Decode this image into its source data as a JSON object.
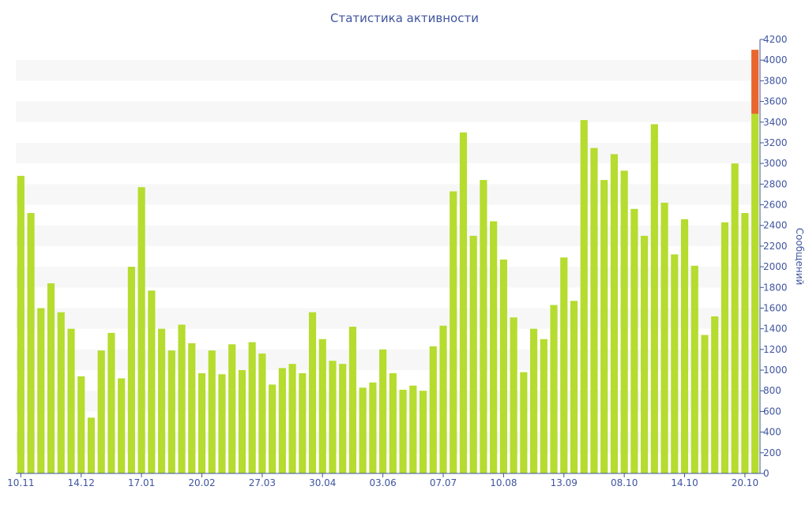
{
  "chart_data": {
    "type": "bar",
    "title": "Статистика активности",
    "xlabel": "",
    "ylabel": "Сообщений",
    "ylim": [
      0,
      4200
    ],
    "y_ticks": [
      0,
      200,
      400,
      600,
      800,
      1000,
      1200,
      1400,
      1600,
      1800,
      2000,
      2200,
      2400,
      2600,
      2800,
      3000,
      3200,
      3400,
      3600,
      3800,
      4000,
      4200
    ],
    "x_tick_labels": [
      {
        "index": 0,
        "label": "10.11"
      },
      {
        "index": 6,
        "label": "14.12"
      },
      {
        "index": 12,
        "label": "17.01"
      },
      {
        "index": 18,
        "label": "20.02"
      },
      {
        "index": 24,
        "label": "27.03"
      },
      {
        "index": 30,
        "label": "30.04"
      },
      {
        "index": 36,
        "label": "03.06"
      },
      {
        "index": 42,
        "label": "07.07"
      },
      {
        "index": 48,
        "label": "10.08"
      },
      {
        "index": 54,
        "label": "13.09"
      },
      {
        "index": 60,
        "label": "08.10"
      },
      {
        "index": 66,
        "label": "14.10"
      },
      {
        "index": 72,
        "label": "20.10"
      }
    ],
    "grid": "horizontal alternating bands",
    "bar_color": "#b5dc2e",
    "highlight_color": "#e8662e",
    "values": [
      2880,
      2520,
      1600,
      1840,
      1560,
      1400,
      940,
      540,
      1190,
      1360,
      920,
      2000,
      2770,
      1770,
      1400,
      1190,
      1440,
      1260,
      970,
      1190,
      960,
      1250,
      1000,
      1270,
      1160,
      860,
      1020,
      1060,
      970,
      1560,
      1300,
      1090,
      1060,
      1420,
      830,
      880,
      1200,
      970,
      810,
      850,
      800,
      1230,
      1430,
      2730,
      3300,
      2300,
      2840,
      2440,
      2070,
      1510,
      980,
      1400,
      1300,
      1630,
      2090,
      1670,
      3420,
      3150,
      2840,
      3090,
      2930,
      2560,
      2300,
      3380,
      2620,
      2120,
      2460,
      2010,
      1340,
      1520,
      2430,
      3000,
      2520,
      4100
    ],
    "highlight": {
      "index": 73,
      "value": 4100,
      "base_value": 3480
    }
  }
}
